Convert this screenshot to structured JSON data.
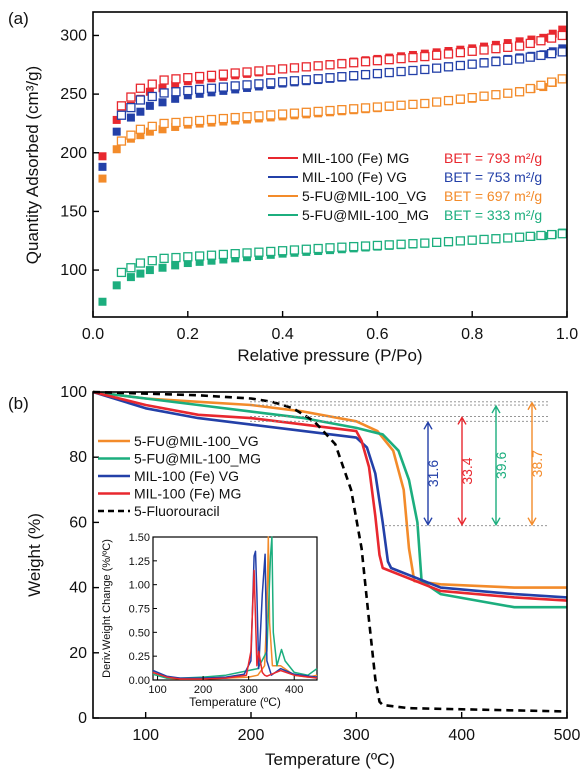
{
  "chart_data": [
    {
      "panel": "(a)",
      "type": "scatter",
      "xlabel": "Relative pressure (P/Po)",
      "ylabel": "Quantity Adsorbed (cm³/g)",
      "xlim": [
        0.0,
        1.0
      ],
      "ylim": [
        60,
        320
      ],
      "xticks": [
        "0.0",
        "0.2",
        "0.4",
        "0.6",
        "0.8",
        "1.0"
      ],
      "yticks": [
        "100",
        "150",
        "200",
        "250",
        "300"
      ],
      "legend_position": "right",
      "series": [
        {
          "name": "MIL-100 (Fe) MG",
          "bet": "BET = 793 m²/g",
          "color": "#e8282f",
          "adsorption": [
            [
              0.02,
              197
            ],
            [
              0.05,
              228
            ],
            [
              0.08,
              240
            ],
            [
              0.12,
              252
            ],
            [
              0.2,
              261
            ],
            [
              0.4,
              271
            ],
            [
              0.6,
              280
            ],
            [
              0.8,
              289
            ],
            [
              0.95,
              298
            ],
            [
              0.99,
              305
            ]
          ],
          "desorption": [
            [
              0.99,
              300
            ],
            [
              0.9,
              291
            ],
            [
              0.7,
              282
            ],
            [
              0.5,
              275
            ],
            [
              0.3,
              268
            ],
            [
              0.15,
              262
            ],
            [
              0.1,
              255
            ],
            [
              0.06,
              240
            ]
          ]
        },
        {
          "name": "MIL-100 (Fe) VG",
          "bet": "BET = 753 m²/g",
          "color": "#2340a8",
          "adsorption": [
            [
              0.02,
              188
            ],
            [
              0.05,
              218
            ],
            [
              0.08,
              230
            ],
            [
              0.12,
              240
            ],
            [
              0.2,
              249
            ],
            [
              0.4,
              259
            ],
            [
              0.6,
              267
            ],
            [
              0.8,
              276
            ],
            [
              0.95,
              284
            ],
            [
              0.99,
              289
            ]
          ],
          "desorption": [
            [
              0.99,
              286
            ],
            [
              0.9,
              280
            ],
            [
              0.7,
              271
            ],
            [
              0.5,
              264
            ],
            [
              0.3,
              257
            ],
            [
              0.15,
              251
            ],
            [
              0.1,
              245
            ],
            [
              0.06,
              232
            ]
          ]
        },
        {
          "name": "5-FU@MIL-100_VG",
          "bet": "BET = 697 m²/g",
          "color": "#f38b2a",
          "adsorption": [
            [
              0.02,
              178
            ],
            [
              0.05,
              203
            ],
            [
              0.08,
              212
            ],
            [
              0.12,
              218
            ],
            [
              0.2,
              224
            ],
            [
              0.4,
              231
            ],
            [
              0.6,
              238
            ],
            [
              0.8,
              246
            ],
            [
              0.95,
              256
            ],
            [
              0.99,
              263
            ]
          ],
          "desorption": [
            [
              0.99,
              263
            ],
            [
              0.9,
              252
            ],
            [
              0.7,
              242
            ],
            [
              0.5,
              236
            ],
            [
              0.3,
              230
            ],
            [
              0.15,
              225
            ],
            [
              0.1,
              220
            ],
            [
              0.06,
              210
            ]
          ]
        },
        {
          "name": "5-FU@MIL-100_MG",
          "bet": "BET = 333 m²/g",
          "color": "#1cae7e",
          "adsorption": [
            [
              0.02,
              73
            ],
            [
              0.05,
              87
            ],
            [
              0.08,
              94
            ],
            [
              0.12,
              100
            ],
            [
              0.2,
              106
            ],
            [
              0.4,
              114
            ],
            [
              0.6,
              120
            ],
            [
              0.8,
              125
            ],
            [
              0.95,
              129
            ],
            [
              0.99,
              132
            ]
          ],
          "desorption": [
            [
              0.99,
              131
            ],
            [
              0.9,
              128
            ],
            [
              0.7,
              123
            ],
            [
              0.5,
              119
            ],
            [
              0.3,
              114
            ],
            [
              0.15,
              110
            ],
            [
              0.1,
              106
            ],
            [
              0.06,
              98
            ]
          ]
        }
      ]
    },
    {
      "panel": "(b)",
      "type": "line",
      "xlabel": "Temperature (ºC)",
      "ylabel": "Weight (%)",
      "xlim": [
        50,
        500
      ],
      "ylim": [
        0,
        100
      ],
      "xticks": [
        "100",
        "200",
        "300",
        "400",
        "500"
      ],
      "yticks": [
        "0",
        "20",
        "40",
        "60",
        "80",
        "100"
      ],
      "legend_position": "left",
      "series": [
        {
          "name": "5-FU@MIL-100_VG",
          "color": "#f38b2a",
          "dash": false,
          "x": [
            50,
            100,
            150,
            200,
            250,
            300,
            320,
            335,
            345,
            350,
            355,
            380,
            450,
            500
          ],
          "y": [
            100,
            98,
            97,
            96,
            94,
            91,
            88,
            82,
            70,
            52,
            42,
            41,
            40,
            40
          ]
        },
        {
          "name": "5-FU@MIL-100_MG",
          "color": "#1cae7e",
          "dash": false,
          "x": [
            50,
            100,
            150,
            200,
            250,
            300,
            325,
            340,
            350,
            358,
            362,
            380,
            450,
            500
          ],
          "y": [
            100,
            98,
            96,
            94,
            92,
            89,
            87,
            82,
            73,
            60,
            42,
            38,
            34,
            34
          ]
        },
        {
          "name": "MIL-100 (Fe) VG",
          "color": "#2340a8",
          "dash": false,
          "x": [
            50,
            100,
            150,
            200,
            250,
            300,
            310,
            318,
            325,
            330,
            333,
            380,
            450,
            500
          ],
          "y": [
            100,
            95,
            92,
            90,
            88,
            86,
            83,
            75,
            60,
            48,
            46,
            40,
            38,
            37
          ]
        },
        {
          "name": "MIL-100 (Fe) MG",
          "color": "#e8282f",
          "dash": false,
          "x": [
            50,
            100,
            150,
            200,
            250,
            300,
            305,
            312,
            318,
            322,
            325,
            380,
            450,
            500
          ],
          "y": [
            100,
            96,
            93,
            92,
            90,
            88,
            85,
            77,
            62,
            50,
            46,
            39,
            37,
            36
          ]
        },
        {
          "name": "5-Fluorouracil",
          "color": "#000000",
          "dash": true,
          "x": [
            50,
            150,
            200,
            220,
            240,
            260,
            280,
            295,
            305,
            312,
            318,
            322,
            325,
            350,
            500
          ],
          "y": [
            100,
            99,
            98,
            97,
            95,
            91,
            84,
            70,
            52,
            30,
            12,
            5,
            4,
            3,
            2
          ]
        }
      ],
      "annotations": [
        {
          "text": "31.6",
          "color": "#2340a8",
          "top": 91,
          "bottom": 59
        },
        {
          "text": "33.4",
          "color": "#e8282f",
          "top": 92.5,
          "bottom": 59
        },
        {
          "text": "39.6",
          "color": "#1cae7e",
          "top": 96,
          "bottom": 59
        },
        {
          "text": "38.7",
          "color": "#f38b2a",
          "top": 97,
          "bottom": 59
        }
      ],
      "inset": {
        "type": "line",
        "xlabel": "Temperature (ºC)",
        "ylabel": "Deriv.Weight Change (%/ºC)",
        "xlim": [
          90,
          450
        ],
        "ylim": [
          0,
          1.5
        ],
        "xticks": [
          "100",
          "200",
          "300",
          "400"
        ],
        "yticks": [
          "0.00",
          "0.25",
          "0.50",
          "0.75",
          "1.00",
          "1.25",
          "1.50"
        ],
        "series": [
          {
            "color": "#f38b2a",
            "x": [
              90,
              120,
              150,
              200,
              250,
              300,
              320,
              335,
              340,
              343,
              346,
              352,
              370,
              400,
              430,
              450
            ],
            "y": [
              0.08,
              0.02,
              0.01,
              0.01,
              0.02,
              0.03,
              0.05,
              0.15,
              0.7,
              1.5,
              0.6,
              0.15,
              0.15,
              0.05,
              0.03,
              0.05
            ]
          },
          {
            "color": "#1cae7e",
            "x": [
              90,
              120,
              150,
              200,
              250,
              280,
              300,
              320,
              340,
              348,
              351,
              354,
              362,
              372,
              380,
              400,
              430,
              450
            ],
            "y": [
              0.06,
              0.02,
              0.02,
              0.03,
              0.05,
              0.08,
              0.1,
              0.12,
              0.3,
              1.3,
              1.5,
              0.5,
              0.15,
              0.32,
              0.2,
              0.08,
              0.05,
              0.12
            ]
          },
          {
            "color": "#2340a8",
            "x": [
              90,
              120,
              150,
              200,
              250,
              290,
              305,
              312,
              315,
              318,
              322,
              330,
              336,
              340,
              350,
              370,
              400,
              450
            ],
            "y": [
              0.1,
              0.04,
              0.02,
              0.02,
              0.03,
              0.06,
              0.2,
              1.3,
              1.35,
              0.9,
              0.12,
              0.9,
              1.32,
              0.2,
              0.05,
              0.12,
              0.06,
              0.03
            ]
          },
          {
            "color": "#e8282f",
            "x": [
              90,
              120,
              150,
              200,
              250,
              295,
              305,
              312,
              318,
              322,
              330,
              335,
              340,
              350,
              370,
              400,
              450
            ],
            "y": [
              0.08,
              0.03,
              0.01,
              0.01,
              0.02,
              0.05,
              0.3,
              1.15,
              0.15,
              0.3,
              0.08,
              0.05,
              0.04,
              0.06,
              0.1,
              0.05,
              0.02
            ]
          }
        ]
      }
    }
  ]
}
